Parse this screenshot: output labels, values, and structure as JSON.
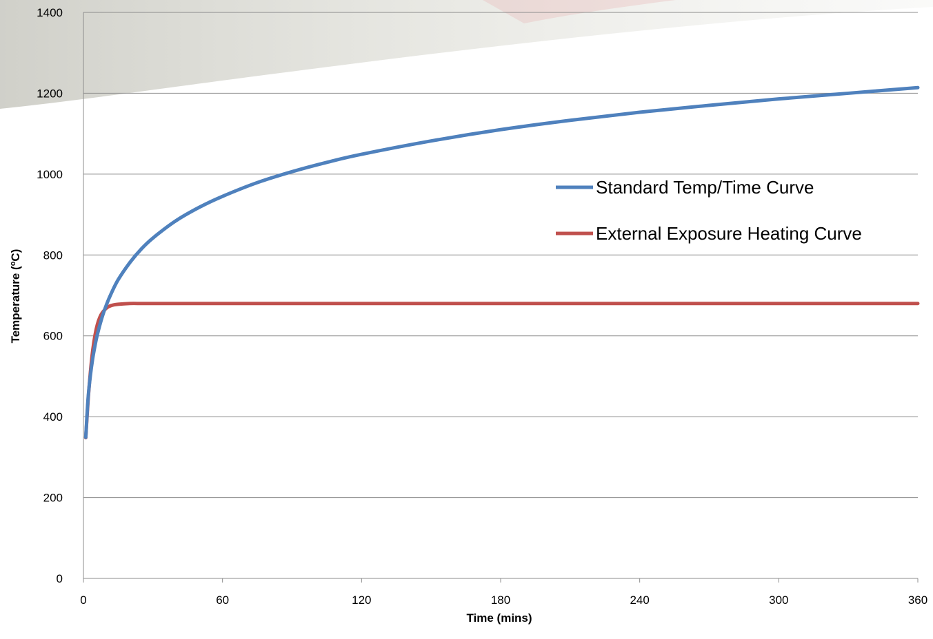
{
  "chart_data": {
    "type": "line",
    "xlabel": "Time (mins)",
    "ylabel": "Temperature (",
    "ylabel_sup": "o",
    "ylabel_end": "C)",
    "xlim": [
      0,
      360
    ],
    "ylim": [
      0,
      1400
    ],
    "x_ticks": [
      0,
      60,
      120,
      180,
      240,
      300,
      360
    ],
    "y_ticks": [
      0,
      200,
      400,
      600,
      800,
      1000,
      1200,
      1400
    ],
    "grid": "horizontal",
    "legend_position": "center-right",
    "series": [
      {
        "name": "Standard Temp/Time Curve",
        "color": "#4f81bd",
        "x": [
          1,
          2,
          3,
          4,
          5,
          6,
          8,
          10,
          12,
          15,
          20,
          25,
          30,
          40,
          50,
          60,
          75,
          90,
          105,
          120,
          150,
          180,
          210,
          240,
          270,
          300,
          330,
          360
        ],
        "y": [
          349,
          445,
          502,
          544,
          576,
          603,
          645,
          678,
          705,
          739,
          781,
          815,
          842,
          885,
          918,
          945,
          979,
          1006,
          1029,
          1049,
          1082,
          1110,
          1133,
          1153,
          1170,
          1186,
          1200,
          1214
        ]
      },
      {
        "name": "External Exposure Heating Curve",
        "color": "#c0504d",
        "x": [
          1,
          2,
          3,
          4,
          5,
          6,
          7,
          8,
          10,
          12,
          15,
          20,
          25,
          30,
          60,
          90,
          120,
          180,
          240,
          300,
          360
        ],
        "y": [
          348,
          439,
          510,
          564,
          602,
          628,
          645,
          656,
          669,
          675,
          678,
          680,
          680,
          680,
          680,
          680,
          680,
          680,
          680,
          680,
          680
        ]
      }
    ]
  }
}
